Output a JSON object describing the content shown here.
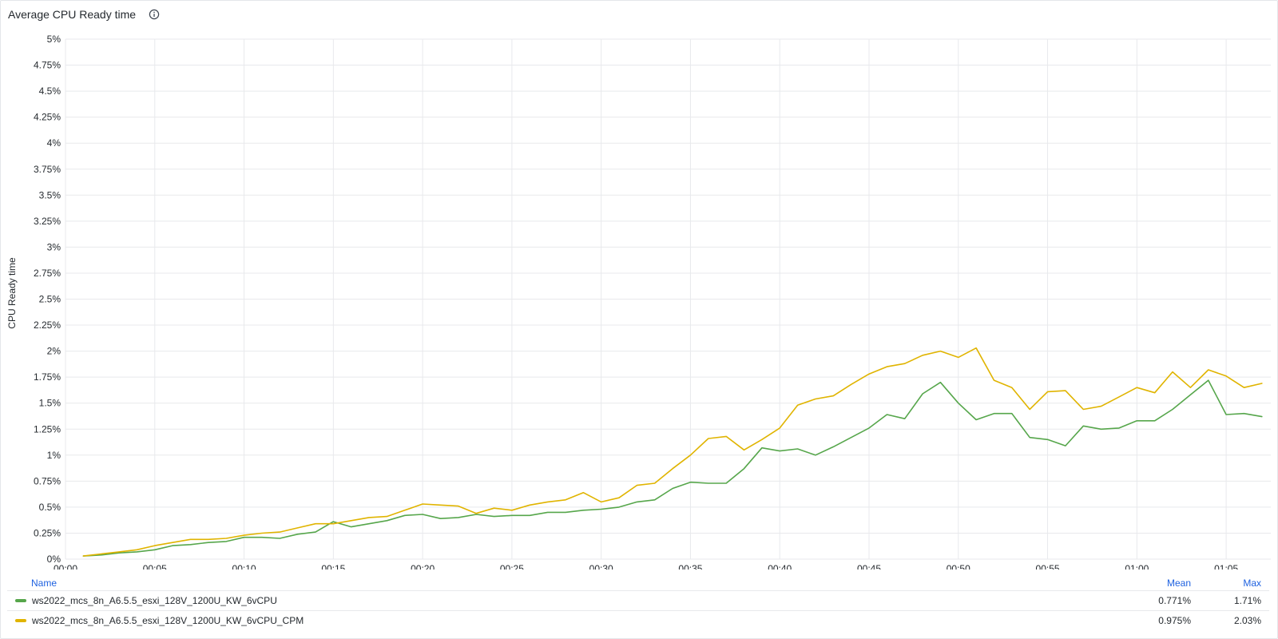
{
  "panel": {
    "title": "Average CPU Ready time",
    "info_icon": "info-circle-icon"
  },
  "legend": {
    "header_name": "Name",
    "header_mean": "Mean",
    "header_max": "Max",
    "rows": [
      {
        "name": "ws2022_mcs_8n_A6.5.5_esxi_128V_1200U_KW_6vCPU",
        "mean": "0.771%",
        "max": "1.71%",
        "color": "#56a64b"
      },
      {
        "name": "ws2022_mcs_8n_A6.5.5_esxi_128V_1200U_KW_6vCPU_CPM",
        "mean": "0.975%",
        "max": "2.03%",
        "color": "#e0b400"
      }
    ]
  },
  "chart_data": {
    "type": "line",
    "title": "Average CPU Ready time",
    "ylabel": "CPU Ready time",
    "xlabel": "",
    "ylim": [
      0,
      5
    ],
    "xlim_minutes": [
      0,
      67.5
    ],
    "y_ticks": [
      "0%",
      "0.25%",
      "0.5%",
      "0.75%",
      "1%",
      "1.25%",
      "1.5%",
      "1.75%",
      "2%",
      "2.25%",
      "2.5%",
      "2.75%",
      "3%",
      "3.25%",
      "3.5%",
      "3.75%",
      "4%",
      "4.25%",
      "4.5%",
      "4.75%",
      "5%"
    ],
    "x_ticks": [
      "00:00",
      "00:05",
      "00:10",
      "00:15",
      "00:20",
      "00:25",
      "00:30",
      "00:35",
      "00:40",
      "00:45",
      "00:50",
      "00:55",
      "01:00",
      "01:05"
    ],
    "grid": true,
    "legend_position": "bottom",
    "x": [
      1,
      2,
      3,
      4,
      5,
      6,
      7,
      8,
      9,
      10,
      11,
      12,
      13,
      14,
      15,
      16,
      17,
      18,
      19,
      20,
      21,
      22,
      23,
      24,
      25,
      26,
      27,
      28,
      29,
      30,
      31,
      32,
      33,
      34,
      35,
      36,
      37,
      38,
      39,
      40,
      41,
      42,
      43,
      44,
      45,
      46,
      47,
      48,
      49,
      50,
      51,
      52,
      53,
      54,
      55,
      56,
      57,
      58,
      59,
      60,
      61,
      62,
      63,
      64,
      65,
      66,
      67
    ],
    "series": [
      {
        "name": "ws2022_mcs_8n_A6.5.5_esxi_128V_1200U_KW_6vCPU",
        "color": "#56a64b",
        "values": [
          0.03,
          0.04,
          0.06,
          0.07,
          0.09,
          0.13,
          0.14,
          0.16,
          0.17,
          0.21,
          0.21,
          0.2,
          0.24,
          0.26,
          0.36,
          0.31,
          0.34,
          0.37,
          0.42,
          0.43,
          0.39,
          0.4,
          0.43,
          0.41,
          0.42,
          0.42,
          0.45,
          0.45,
          0.47,
          0.48,
          0.5,
          0.55,
          0.57,
          0.68,
          0.74,
          0.73,
          0.73,
          0.87,
          1.07,
          1.04,
          1.06,
          1.0,
          1.08,
          1.17,
          1.26,
          1.39,
          1.35,
          1.59,
          1.7,
          1.5,
          1.34,
          1.4,
          1.4,
          1.17,
          1.15,
          1.09,
          1.28,
          1.25,
          1.26,
          1.33,
          1.33,
          1.44,
          1.58,
          1.72,
          1.39,
          1.4,
          1.37
        ]
      },
      {
        "name": "ws2022_mcs_8n_A6.5.5_esxi_128V_1200U_KW_6vCPU_CPM",
        "color": "#e0b400",
        "values": [
          0.03,
          0.05,
          0.07,
          0.09,
          0.13,
          0.16,
          0.19,
          0.19,
          0.2,
          0.23,
          0.25,
          0.26,
          0.3,
          0.34,
          0.34,
          0.37,
          0.4,
          0.41,
          0.47,
          0.53,
          0.52,
          0.51,
          0.44,
          0.49,
          0.47,
          0.52,
          0.55,
          0.57,
          0.64,
          0.55,
          0.59,
          0.71,
          0.73,
          0.87,
          1.0,
          1.16,
          1.18,
          1.05,
          1.15,
          1.26,
          1.48,
          1.54,
          1.57,
          1.68,
          1.78,
          1.85,
          1.88,
          1.96,
          2.0,
          1.94,
          2.03,
          1.72,
          1.65,
          1.44,
          1.61,
          1.62,
          1.44,
          1.47,
          1.56,
          1.65,
          1.6,
          1.8,
          1.65,
          1.82,
          1.76,
          1.65,
          1.69
        ]
      }
    ]
  }
}
